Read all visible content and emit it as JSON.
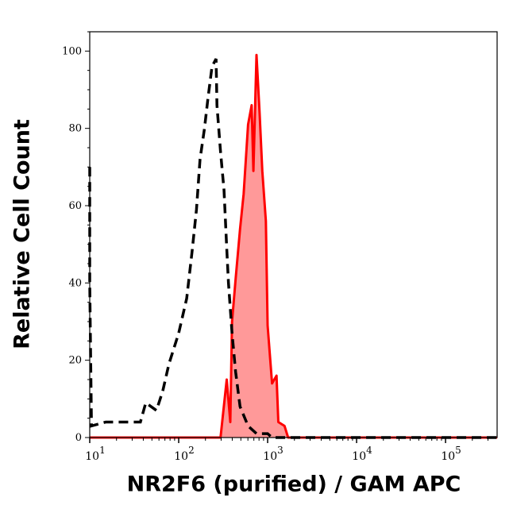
{
  "chart_data": {
    "type": "area",
    "title": "",
    "xlabel": "NR2F6 (purified) / GAM APC",
    "ylabel": "Relative Cell Count",
    "x_scale": "log",
    "xlim": [
      10,
      380000
    ],
    "ylim": [
      0,
      105
    ],
    "x_ticks": [
      {
        "base": "10",
        "exp": "1"
      },
      {
        "base": "10",
        "exp": "2"
      },
      {
        "base": "10",
        "exp": "3"
      },
      {
        "base": "10",
        "exp": "4"
      },
      {
        "base": "10",
        "exp": "5"
      }
    ],
    "y_ticks": [
      "0",
      "20",
      "40",
      "60",
      "80",
      "100"
    ],
    "grid": false,
    "series": [
      {
        "style": "dashed line",
        "color": "#000000",
        "log10_x": [
          1.0,
          1.0,
          1.02,
          1.18,
          1.42,
          1.57,
          1.63,
          1.75,
          1.82,
          1.89,
          2.0,
          2.09,
          2.15,
          2.2,
          2.24,
          2.29,
          2.33,
          2.375,
          2.42,
          2.43,
          2.47,
          2.51,
          2.54,
          2.56,
          2.6,
          2.64,
          2.69,
          2.78,
          2.875,
          3.0,
          3.05,
          5.58
        ],
        "y": [
          70,
          40,
          3,
          4,
          4,
          4,
          9,
          7,
          12,
          19,
          27,
          36,
          48,
          59,
          72,
          80,
          88,
          96,
          98,
          86,
          74,
          64,
          49,
          40,
          27,
          17,
          8,
          3,
          1,
          1,
          0,
          0
        ]
      },
      {
        "style": "filled line",
        "color": "#ff0000",
        "fill": "#ff9999",
        "log10_x": [
          1.0,
          2.47,
          2.54,
          2.58,
          2.6,
          2.64,
          2.69,
          2.73,
          2.78,
          2.82,
          2.84,
          2.875,
          2.91,
          2.94,
          2.98,
          3.0,
          3.05,
          3.1,
          3.12,
          3.19,
          3.23,
          5.58
        ],
        "y": [
          0,
          0,
          15,
          4,
          30,
          41,
          54,
          63,
          81,
          86,
          69,
          99,
          84,
          69,
          56,
          29,
          14,
          16,
          4,
          3,
          0,
          0
        ]
      }
    ]
  }
}
